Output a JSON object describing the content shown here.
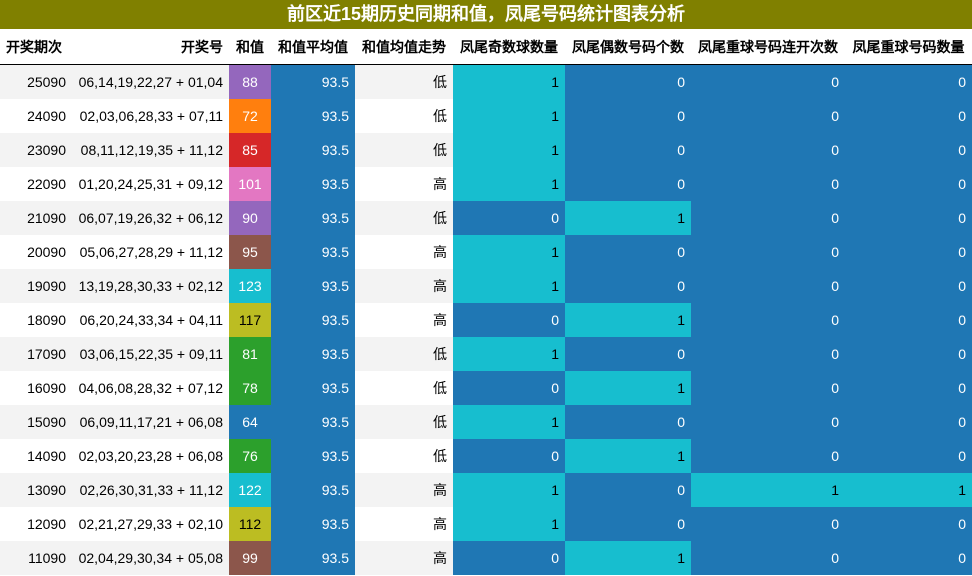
{
  "title": "前区近15期历史同期和值，凤尾号码统计图表分析",
  "columns": [
    "开奖期次",
    "开奖号",
    "和值",
    "和值平均值",
    "和值均值走势",
    "凤尾奇数球数量",
    "凤尾偶数号码个数",
    "凤尾重球号码连开次数",
    "凤尾重球号码数量"
  ],
  "colors": {
    "title_bg": "#808000",
    "cell_on": "#17becf",
    "cell_off": "#1f77b4",
    "sum_palette": [
      "#9467bd",
      "#ff7f0e",
      "#d62728",
      "#e377c2",
      "#9467bd",
      "#8c564b",
      "#17becf",
      "#bcbd22",
      "#2ca02c",
      "#2ca02c",
      "#1f77b4",
      "#2ca02c",
      "#17becf",
      "#bcbd22",
      "#8c564b"
    ]
  },
  "rows": [
    {
      "period": "25090",
      "numbers": "06,14,19,22,27 + 01,04",
      "sum": "88",
      "avg": "93.5",
      "trend": "低",
      "odd": "1",
      "even": "0",
      "repeat_streak": "0",
      "repeat_count": "0"
    },
    {
      "period": "24090",
      "numbers": "02,03,06,28,33 + 07,11",
      "sum": "72",
      "avg": "93.5",
      "trend": "低",
      "odd": "1",
      "even": "0",
      "repeat_streak": "0",
      "repeat_count": "0"
    },
    {
      "period": "23090",
      "numbers": "08,11,12,19,35 + 11,12",
      "sum": "85",
      "avg": "93.5",
      "trend": "低",
      "odd": "1",
      "even": "0",
      "repeat_streak": "0",
      "repeat_count": "0"
    },
    {
      "period": "22090",
      "numbers": "01,20,24,25,31 + 09,12",
      "sum": "101",
      "avg": "93.5",
      "trend": "高",
      "odd": "1",
      "even": "0",
      "repeat_streak": "0",
      "repeat_count": "0"
    },
    {
      "period": "21090",
      "numbers": "06,07,19,26,32 + 06,12",
      "sum": "90",
      "avg": "93.5",
      "trend": "低",
      "odd": "0",
      "even": "1",
      "repeat_streak": "0",
      "repeat_count": "0"
    },
    {
      "period": "20090",
      "numbers": "05,06,27,28,29 + 11,12",
      "sum": "95",
      "avg": "93.5",
      "trend": "高",
      "odd": "1",
      "even": "0",
      "repeat_streak": "0",
      "repeat_count": "0"
    },
    {
      "period": "19090",
      "numbers": "13,19,28,30,33 + 02,12",
      "sum": "123",
      "avg": "93.5",
      "trend": "高",
      "odd": "1",
      "even": "0",
      "repeat_streak": "0",
      "repeat_count": "0"
    },
    {
      "period": "18090",
      "numbers": "06,20,24,33,34 + 04,11",
      "sum": "117",
      "avg": "93.5",
      "trend": "高",
      "odd": "0",
      "even": "1",
      "repeat_streak": "0",
      "repeat_count": "0"
    },
    {
      "period": "17090",
      "numbers": "03,06,15,22,35 + 09,11",
      "sum": "81",
      "avg": "93.5",
      "trend": "低",
      "odd": "1",
      "even": "0",
      "repeat_streak": "0",
      "repeat_count": "0"
    },
    {
      "period": "16090",
      "numbers": "04,06,08,28,32 + 07,12",
      "sum": "78",
      "avg": "93.5",
      "trend": "低",
      "odd": "0",
      "even": "1",
      "repeat_streak": "0",
      "repeat_count": "0"
    },
    {
      "period": "15090",
      "numbers": "06,09,11,17,21 + 06,08",
      "sum": "64",
      "avg": "93.5",
      "trend": "低",
      "odd": "1",
      "even": "0",
      "repeat_streak": "0",
      "repeat_count": "0"
    },
    {
      "period": "14090",
      "numbers": "02,03,20,23,28 + 06,08",
      "sum": "76",
      "avg": "93.5",
      "trend": "低",
      "odd": "0",
      "even": "1",
      "repeat_streak": "0",
      "repeat_count": "0"
    },
    {
      "period": "13090",
      "numbers": "02,26,30,31,33 + 11,12",
      "sum": "122",
      "avg": "93.5",
      "trend": "高",
      "odd": "1",
      "even": "0",
      "repeat_streak": "1",
      "repeat_count": "1"
    },
    {
      "period": "12090",
      "numbers": "02,21,27,29,33 + 02,10",
      "sum": "112",
      "avg": "93.5",
      "trend": "高",
      "odd": "1",
      "even": "0",
      "repeat_streak": "0",
      "repeat_count": "0"
    },
    {
      "period": "11090",
      "numbers": "02,04,29,30,34 + 05,08",
      "sum": "99",
      "avg": "93.5",
      "trend": "高",
      "odd": "0",
      "even": "1",
      "repeat_streak": "0",
      "repeat_count": "0"
    }
  ]
}
